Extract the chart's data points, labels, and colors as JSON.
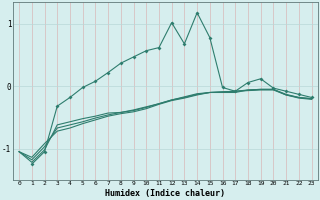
{
  "x": [
    0,
    1,
    2,
    3,
    4,
    5,
    6,
    7,
    8,
    9,
    10,
    11,
    12,
    13,
    14,
    15,
    16,
    17,
    18,
    19,
    20,
    21,
    22,
    23
  ],
  "line1_y": [
    null,
    -1.25,
    -1.05,
    -0.32,
    -0.18,
    -0.02,
    0.08,
    0.22,
    0.37,
    0.47,
    0.57,
    0.62,
    1.02,
    0.68,
    1.18,
    0.78,
    -0.02,
    -0.08,
    0.06,
    0.12,
    -0.03,
    -0.08,
    -0.13,
    -0.18
  ],
  "line3_y": [
    -1.05,
    -1.22,
    -1.02,
    -0.62,
    -0.57,
    -0.52,
    -0.48,
    -0.43,
    -0.42,
    -0.38,
    -0.33,
    -0.28,
    -0.22,
    -0.17,
    -0.12,
    -0.1,
    -0.1,
    -0.1,
    -0.06,
    -0.05,
    -0.05,
    -0.14,
    -0.18,
    -0.2
  ],
  "line4_y": [
    -1.05,
    -1.18,
    -0.97,
    -0.67,
    -0.62,
    -0.57,
    -0.51,
    -0.46,
    -0.42,
    -0.39,
    -0.34,
    -0.28,
    -0.22,
    -0.18,
    -0.13,
    -0.1,
    -0.09,
    -0.08,
    -0.07,
    -0.06,
    -0.06,
    -0.14,
    -0.19,
    -0.21
  ],
  "line5_y": [
    -1.05,
    -1.14,
    -0.92,
    -0.72,
    -0.67,
    -0.6,
    -0.54,
    -0.48,
    -0.44,
    -0.41,
    -0.36,
    -0.29,
    -0.23,
    -0.19,
    -0.14,
    -0.1,
    -0.09,
    -0.08,
    -0.06,
    -0.05,
    -0.05,
    -0.13,
    -0.18,
    -0.2
  ],
  "bg_color": "#d6eeee",
  "line_color": "#2e7d6e",
  "grid_color": "#b8d8d8",
  "xlabel": "Humidex (Indice chaleur)",
  "ylim": [
    -1.5,
    1.35
  ],
  "xlim": [
    -0.5,
    23.5
  ],
  "yticks": [
    -1,
    0,
    1
  ],
  "ytick_labels": [
    "-1",
    "0",
    "1"
  ]
}
